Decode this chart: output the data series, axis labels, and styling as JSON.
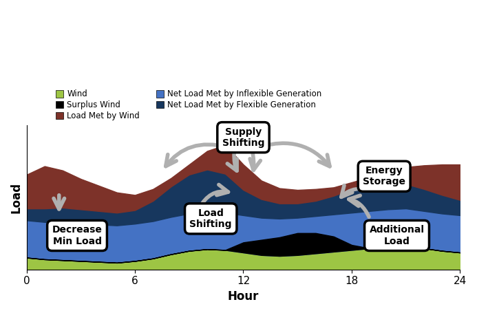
{
  "hours": [
    0,
    1,
    2,
    3,
    4,
    5,
    6,
    7,
    8,
    9,
    10,
    11,
    12,
    13,
    14,
    15,
    16,
    17,
    18,
    19,
    20,
    21,
    22,
    23,
    24
  ],
  "wind": [
    0.7,
    0.6,
    0.55,
    0.5,
    0.45,
    0.4,
    0.5,
    0.65,
    0.9,
    1.1,
    1.2,
    1.15,
    1.0,
    0.85,
    0.8,
    0.85,
    0.95,
    1.05,
    1.15,
    1.25,
    1.35,
    1.4,
    1.25,
    1.1,
    1.0
  ],
  "inflexible": [
    2.2,
    2.2,
    2.2,
    2.2,
    2.2,
    2.2,
    2.2,
    2.2,
    2.2,
    2.2,
    2.2,
    2.2,
    2.2,
    2.2,
    2.2,
    2.2,
    2.2,
    2.2,
    2.2,
    2.2,
    2.2,
    2.2,
    2.2,
    2.2,
    2.2
  ],
  "flexible": [
    0.7,
    0.8,
    0.9,
    0.85,
    0.8,
    0.75,
    0.8,
    1.2,
    1.8,
    2.3,
    2.5,
    2.3,
    1.5,
    1.1,
    0.9,
    0.85,
    0.9,
    1.1,
    1.4,
    1.5,
    1.5,
    1.45,
    1.3,
    1.1,
    0.9
  ],
  "load_wind": [
    2.0,
    2.5,
    2.2,
    1.8,
    1.5,
    1.2,
    0.9,
    0.7,
    0.5,
    0.6,
    1.1,
    1.7,
    1.5,
    1.1,
    0.9,
    0.8,
    0.7,
    0.5,
    0.4,
    0.5,
    0.7,
    1.0,
    1.4,
    1.8,
    2.1
  ],
  "surplus": [
    0,
    0,
    0,
    0,
    0,
    0,
    0,
    0,
    0,
    0,
    0,
    0,
    0.6,
    0.9,
    1.1,
    1.3,
    1.2,
    0.9,
    0.3,
    0,
    0,
    0,
    0,
    0,
    0
  ],
  "color_wind": "#9dc544",
  "color_inflexible": "#4472c4",
  "color_flexible": "#17375e",
  "color_load_wind": "#7d3229",
  "color_surplus": "#000000",
  "gray": "#b0b0b0",
  "ylabel": "Load",
  "xlabel": "Hour",
  "legend_col1": [
    "Wind",
    "Surplus Wind",
    "Load Met by Wind"
  ],
  "legend_col1_colors": [
    "#9dc544",
    "#000000",
    "#7d3229"
  ],
  "legend_col2": [
    "Net Load Met by Inflexible Generation",
    "Net Load Met by Flexible Generation"
  ],
  "legend_col2_colors": [
    "#4472c4",
    "#17375e"
  ]
}
